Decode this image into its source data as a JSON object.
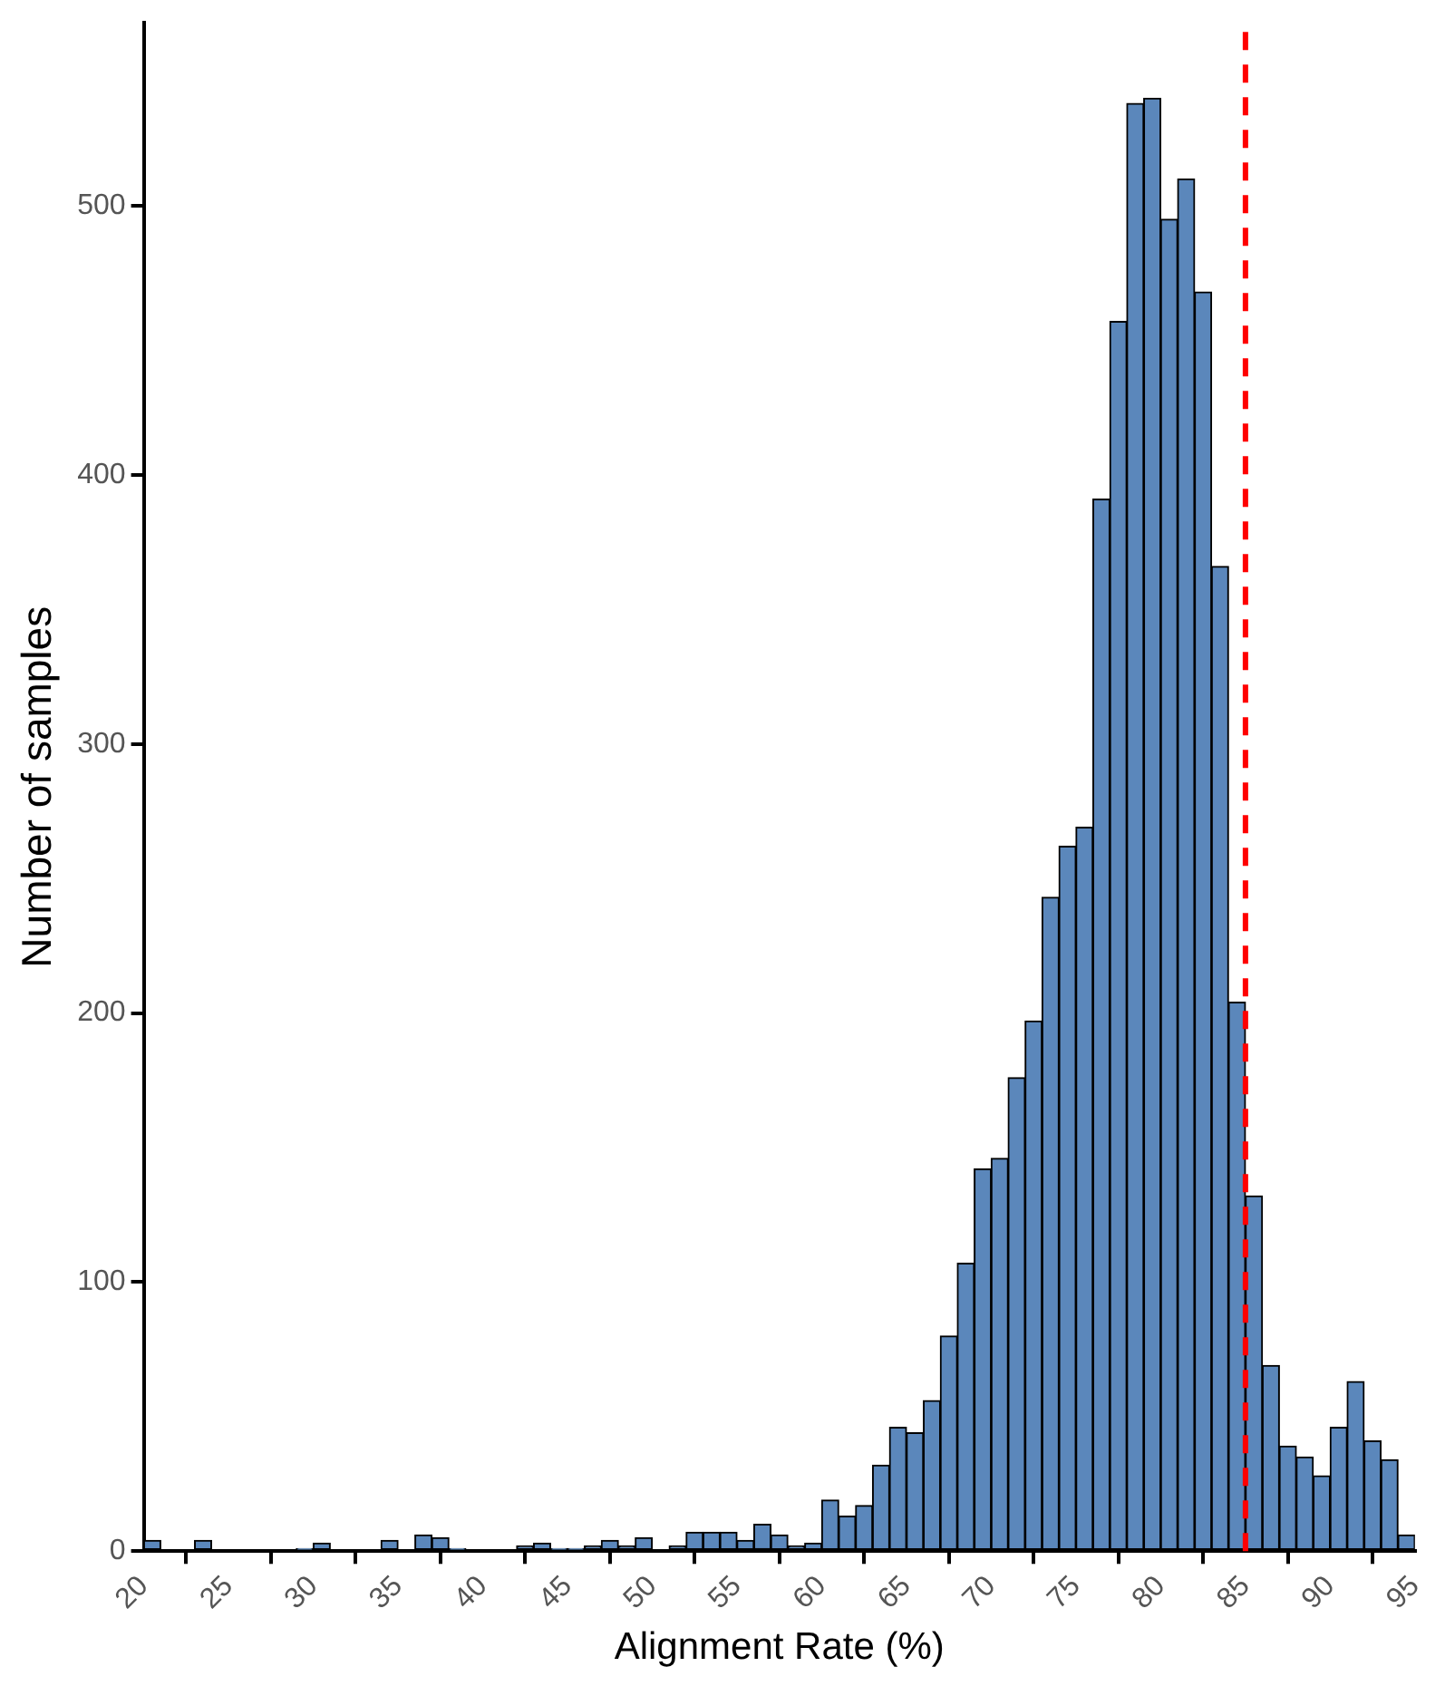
{
  "chart_data": {
    "type": "histogram",
    "xlabel": "Alignment Rate (%)",
    "ylabel": "Number of samples",
    "bins": [
      20,
      21,
      22,
      23,
      24,
      25,
      26,
      27,
      28,
      29,
      30,
      31,
      32,
      33,
      34,
      35,
      36,
      37,
      38,
      39,
      40,
      41,
      42,
      43,
      44,
      45,
      46,
      47,
      48,
      49,
      50,
      51,
      52,
      53,
      54,
      55,
      56,
      57,
      58,
      59,
      60,
      61,
      62,
      63,
      64,
      65,
      66,
      67,
      68,
      69,
      70,
      71,
      72,
      73,
      74,
      75,
      76,
      77,
      78,
      79,
      80,
      81,
      82,
      83,
      84,
      85,
      86,
      87,
      88,
      89,
      90,
      91,
      92,
      93,
      94,
      95
    ],
    "values": [
      4,
      0,
      0,
      4,
      0,
      0,
      0,
      0,
      0,
      1,
      3,
      0,
      0,
      0,
      4,
      0,
      6,
      5,
      1,
      0,
      0,
      0,
      2,
      3,
      1,
      1,
      2,
      4,
      2,
      5,
      0,
      2,
      7,
      7,
      7,
      4,
      10,
      6,
      2,
      3,
      19,
      13,
      17,
      32,
      46,
      44,
      56,
      80,
      107,
      142,
      146,
      176,
      197,
      243,
      262,
      269,
      391,
      457,
      538,
      540,
      495,
      510,
      468,
      366,
      204,
      132,
      69,
      39,
      35,
      28,
      46,
      63,
      41,
      34,
      6
    ],
    "color": "#5b87bb",
    "xlim": [
      20,
      95
    ],
    "xticks": [
      20,
      25,
      30,
      35,
      40,
      45,
      50,
      55,
      60,
      65,
      70,
      75,
      80,
      85,
      90,
      95
    ],
    "ylim": [
      0,
      568
    ],
    "yticks": [
      0,
      100,
      200,
      300,
      400,
      500
    ],
    "grid": false,
    "legend": false,
    "ref_lines": [
      {
        "axis": "x",
        "value": 85,
        "color": "#ff0000",
        "line_style": "dashed"
      }
    ]
  }
}
